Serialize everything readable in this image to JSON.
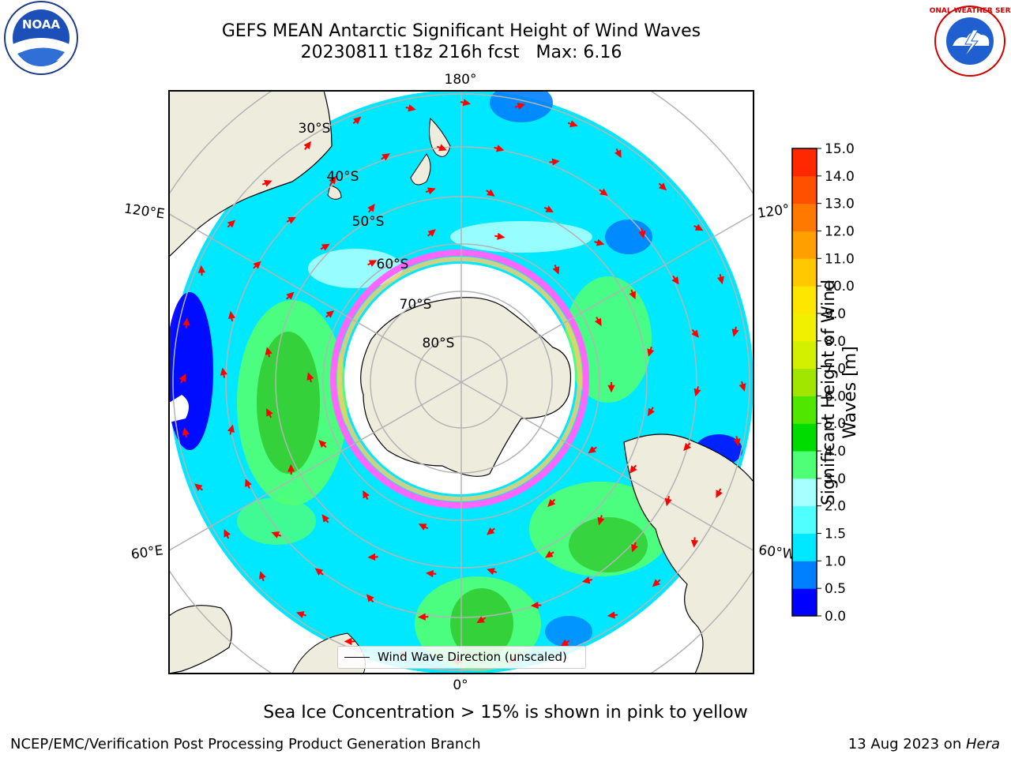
{
  "title": {
    "line1": "GEFS MEAN Antarctic Significant Height of Wind Waves",
    "line2": "20230811 t18z 216h fcst   Max: 6.16"
  },
  "logos": {
    "left": "noaa-logo",
    "right": "national-weather-service-logo",
    "left_text": "NOAA",
    "right_text": "NATIONAL WEATHER SERVICE"
  },
  "map": {
    "longitude_labels": {
      "top": "180°",
      "upper_left": "120°E",
      "upper_right": "120°",
      "lower_left": "60°E",
      "lower_right": "60°W",
      "bottom": "0°"
    },
    "latitude_labels": [
      "30°S",
      "40°S",
      "50°S",
      "60°S",
      "70°S",
      "80°S"
    ],
    "legend": "Wind Wave Direction (unscaled)",
    "colors": {
      "land": "#eeecdc",
      "ocean_low": "#0000ff",
      "ocean_mid": "#00f0f8",
      "ocean_high": "#33dd33",
      "ice": "#ff66ff",
      "arrow": "#ff0000",
      "grid": "#b4b4b4"
    }
  },
  "colorbar": {
    "label_line1": "Significant Height of Wind",
    "label_line2": "Waves [m]",
    "ticks": [
      "0.0",
      "0.5",
      "1.0",
      "1.5",
      "2.0",
      "3.0",
      "4.0",
      "5.0",
      "6.0",
      "7.0",
      "8.0",
      "9.0",
      "10.0",
      "11.0",
      "12.0",
      "13.0",
      "14.0",
      "15.0"
    ],
    "colors": [
      "#0000ff",
      "#0080ff",
      "#00e8ff",
      "#50ffff",
      "#a8ffff",
      "#50ff78",
      "#00dc00",
      "#50e600",
      "#a0e600",
      "#d2f000",
      "#f0f000",
      "#ffe600",
      "#ffc800",
      "#ffa000",
      "#ff7800",
      "#ff5000",
      "#ff2800"
    ]
  },
  "caption": "Sea Ice Concentration > 15% is shown in pink to yellow",
  "footer": {
    "left": "NCEP/EMC/Verification Post Processing Product Generation Branch",
    "right_date": "13 Aug 2023 on ",
    "right_machine": "Hera"
  }
}
